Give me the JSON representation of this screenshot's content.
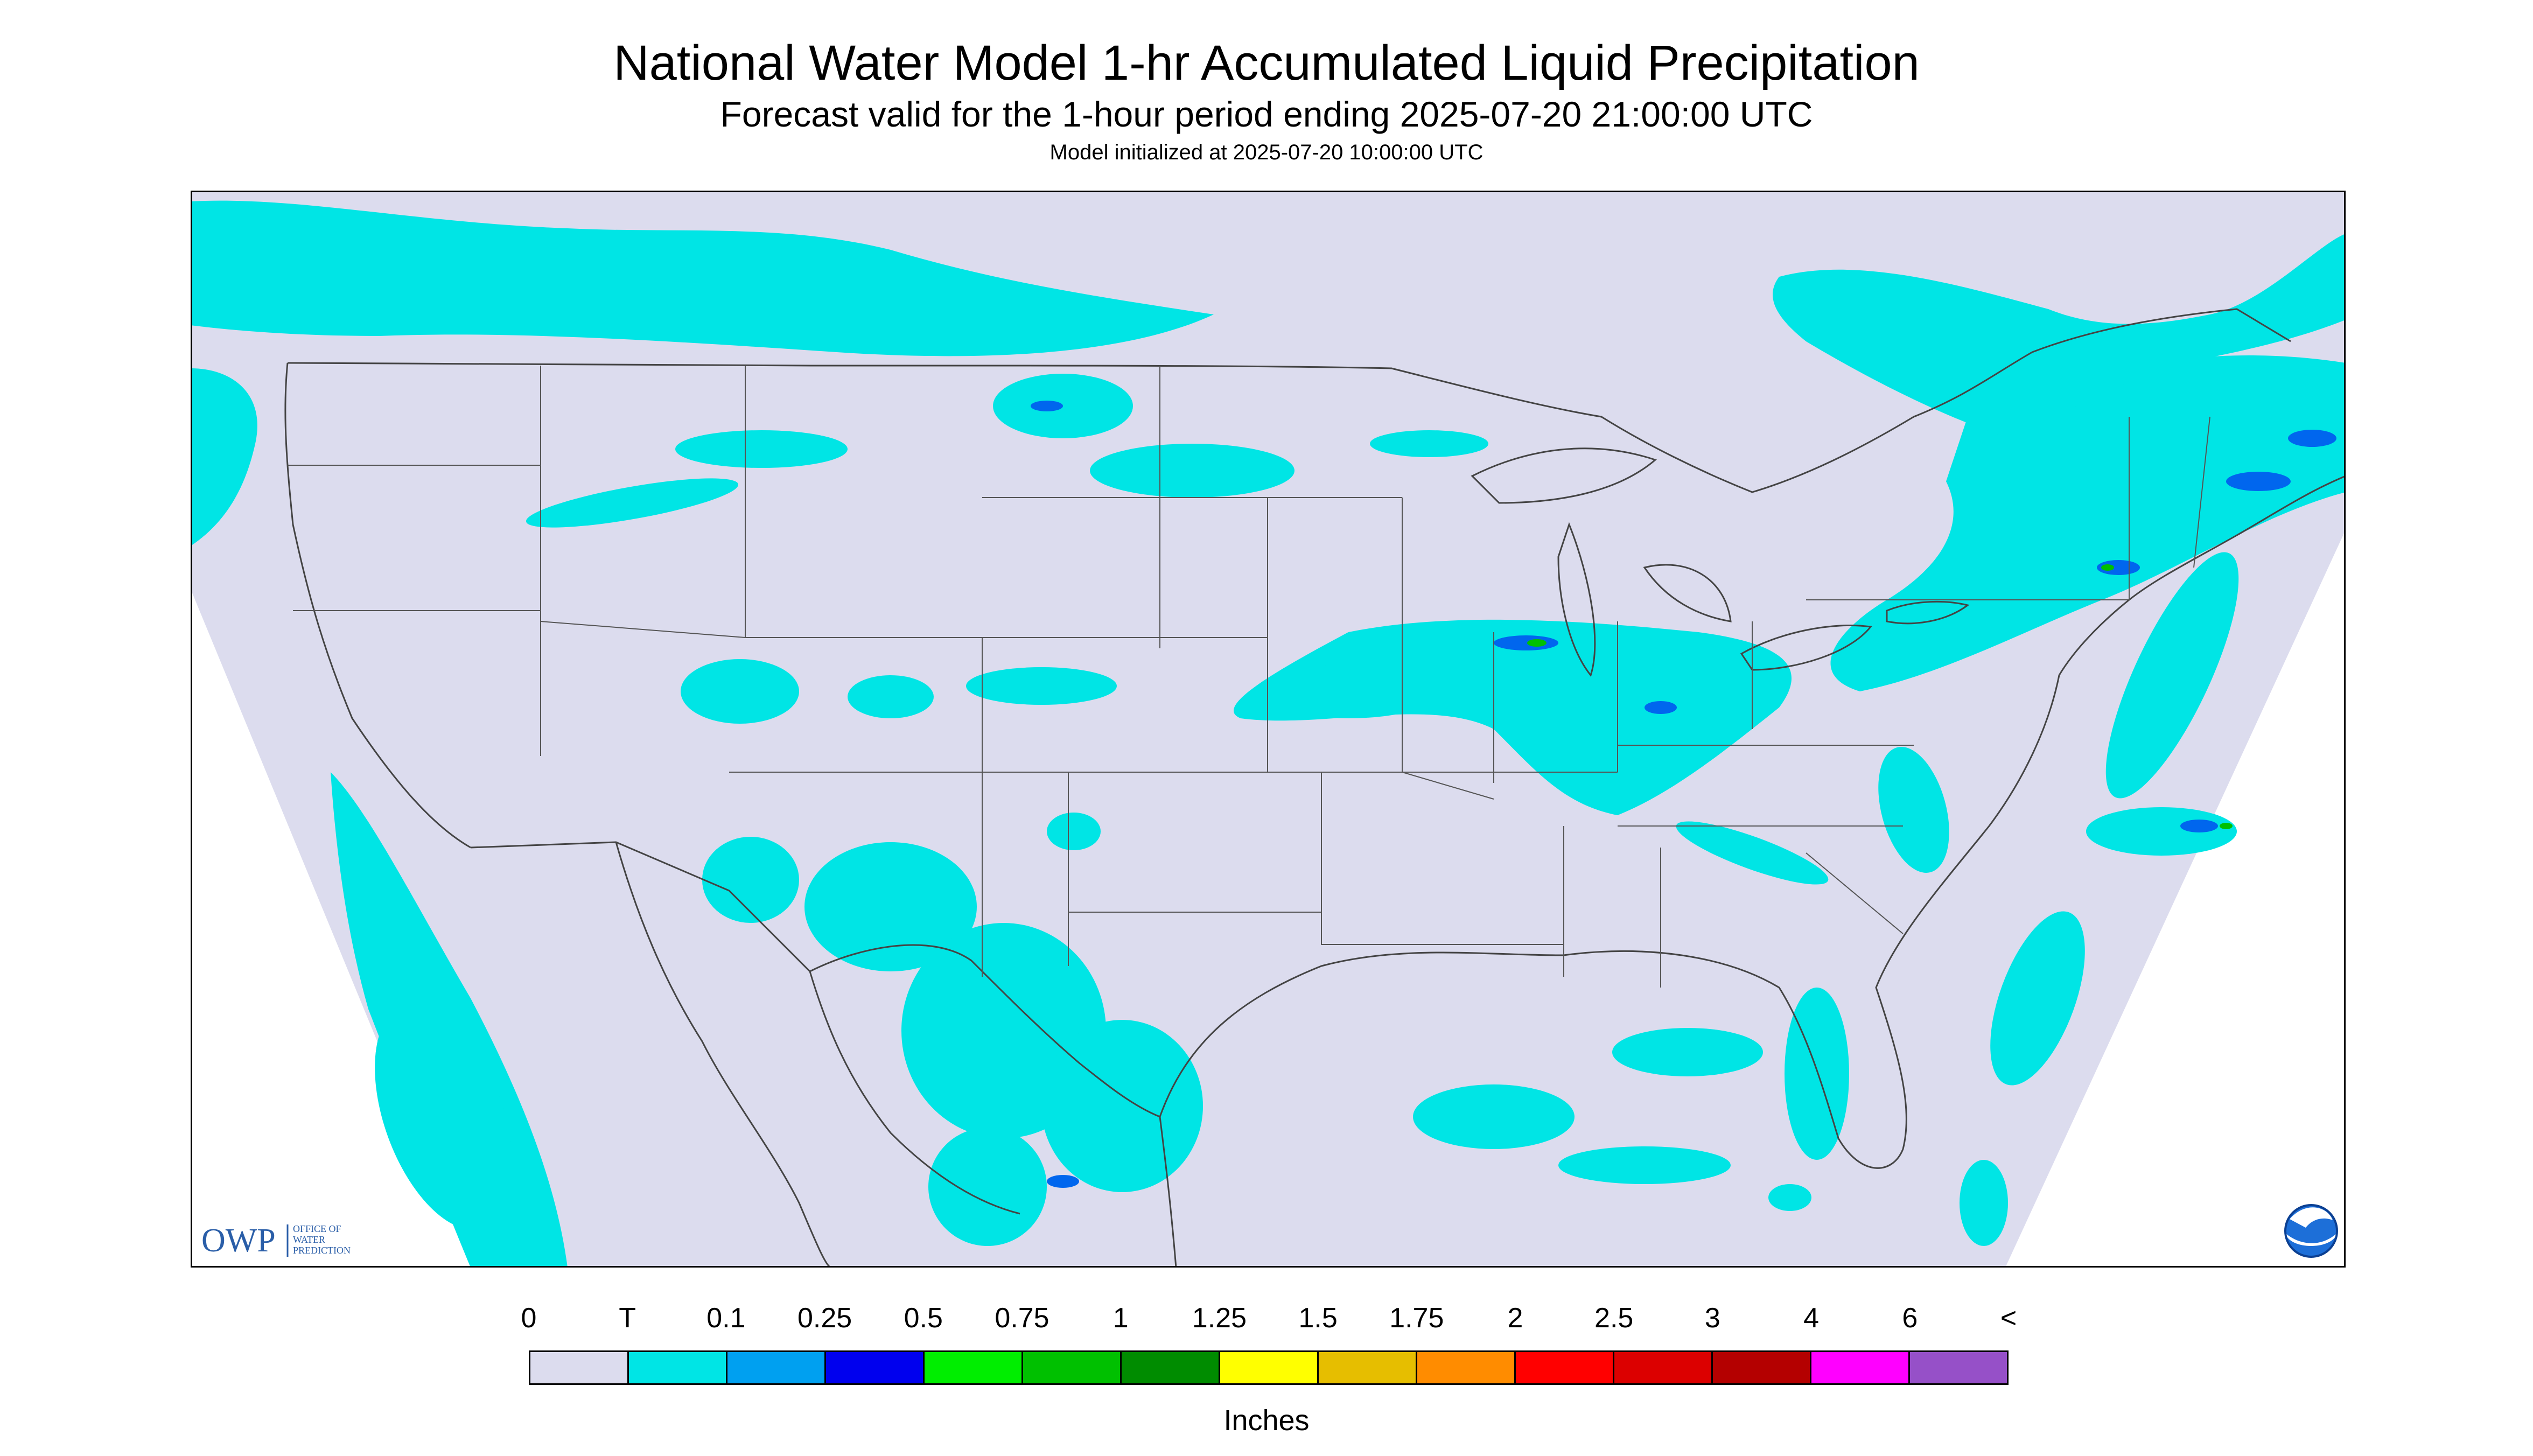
{
  "header": {
    "title": "National Water Model 1-hr Accumulated Liquid Precipitation",
    "subtitle": "Forecast valid for the 1-hour period ending 2025-07-20 21:00:00 UTC",
    "init": "Model initialized at 2025-07-20 10:00:00 UTC"
  },
  "map": {
    "logo_letters": "OWP",
    "logo_text": [
      "OFFICE OF",
      "WATER",
      "PREDICTION"
    ],
    "colors": {
      "background": "#dcdcee",
      "outside": "#ffffff",
      "boundary": "#444444",
      "trace": "#00e5e5",
      "heavy": "#0066ee"
    }
  },
  "legend": {
    "labels": [
      "0",
      "T",
      "0.1",
      "0.25",
      "0.5",
      "0.75",
      "1",
      "1.25",
      "1.5",
      "1.75",
      "2",
      "2.5",
      "3",
      "4",
      "6",
      "<"
    ],
    "colors": [
      "#dcdcee",
      "#00e5e5",
      "#00a0f0",
      "#0000ee",
      "#00ee00",
      "#00c000",
      "#008c00",
      "#ffff00",
      "#e6be00",
      "#ff8c00",
      "#ff0000",
      "#dc0000",
      "#b40000",
      "#ff00ff",
      "#9650c8"
    ],
    "units": "Inches"
  }
}
